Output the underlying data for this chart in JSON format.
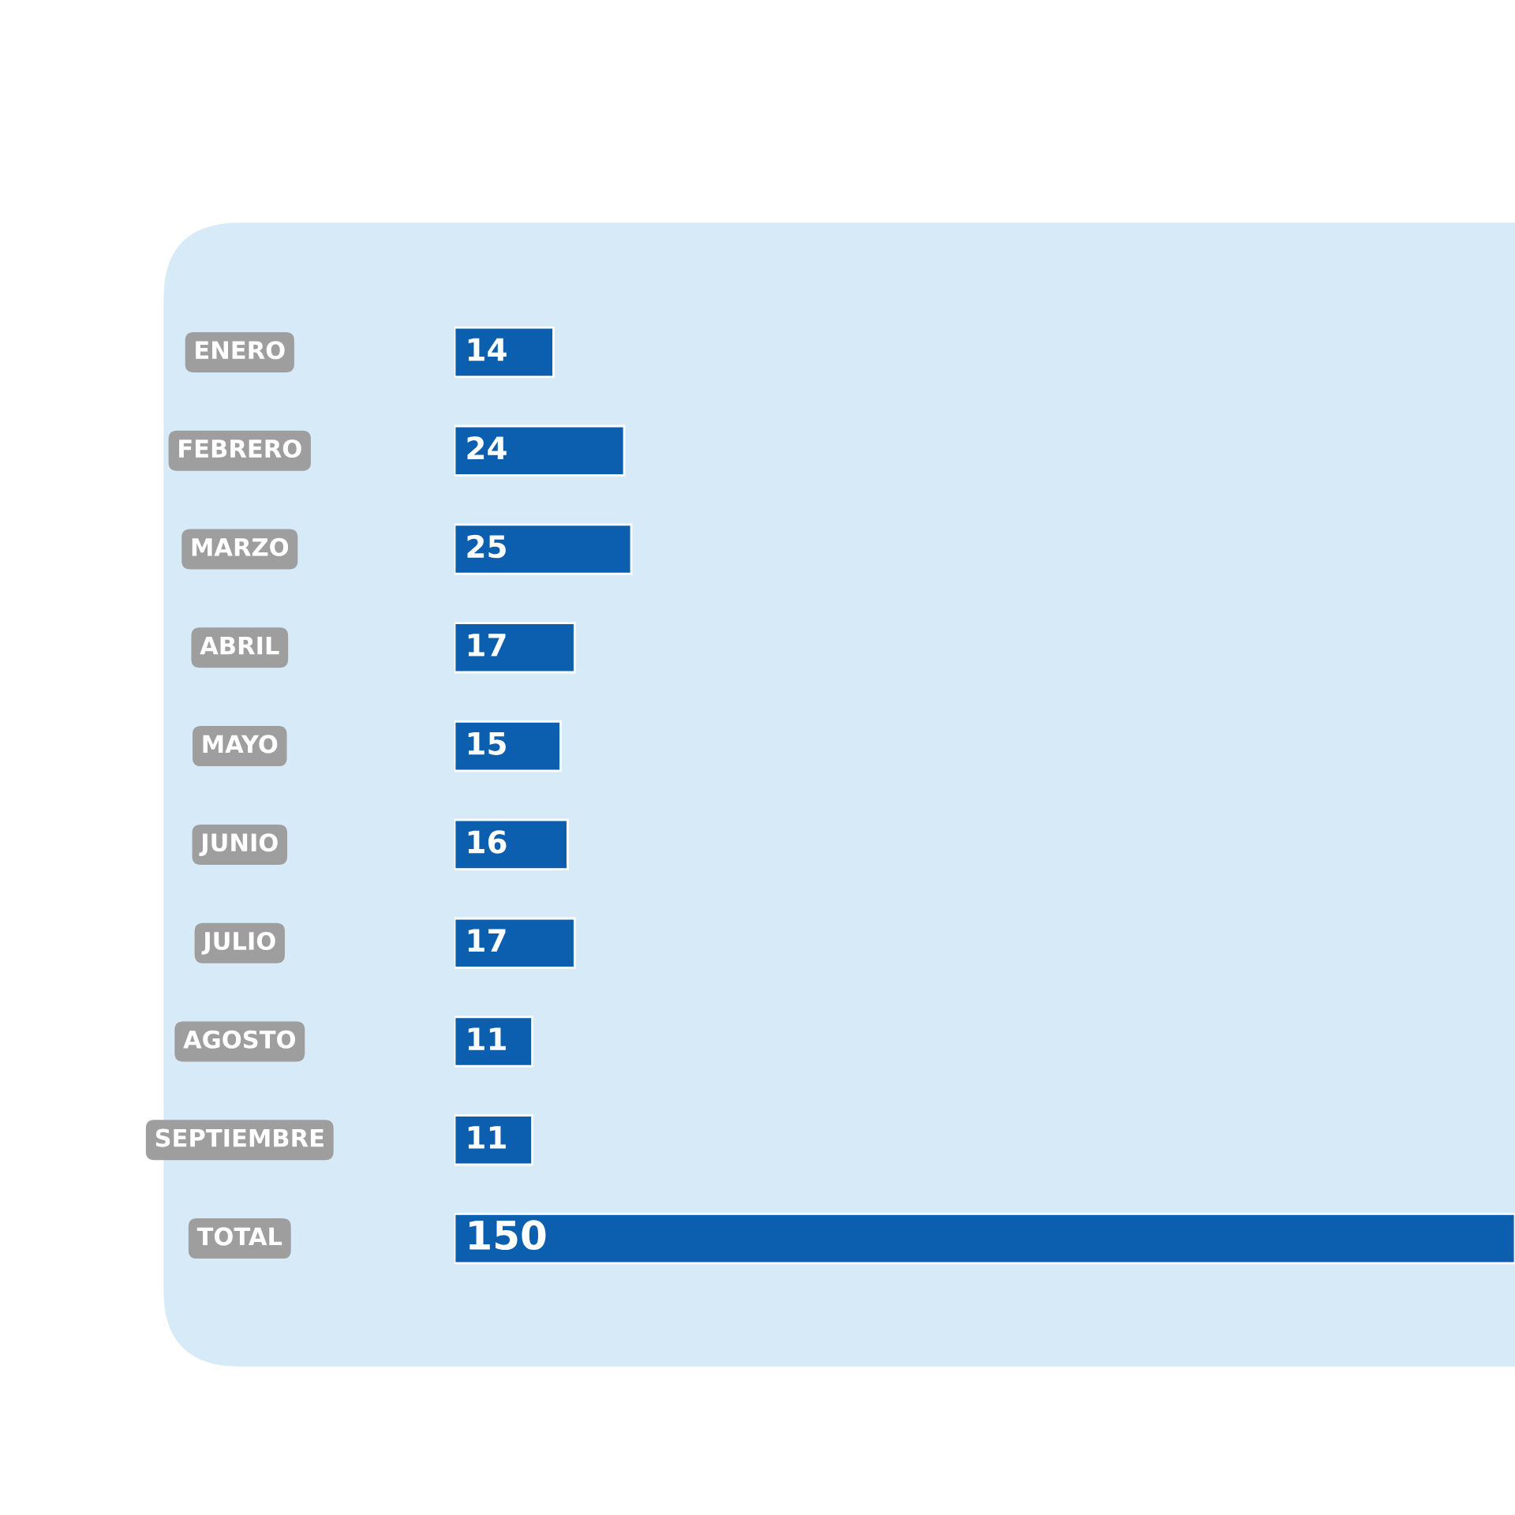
{
  "chart_data": {
    "type": "bar",
    "orientation": "horizontal",
    "categories": [
      "ENERO",
      "FEBRERO",
      "MARZO",
      "ABRIL",
      "MAYO",
      "JUNIO",
      "JULIO",
      "AGOSTO",
      "SEPTIEMBRE",
      "TOTAL"
    ],
    "values": [
      14,
      24,
      25,
      17,
      15,
      16,
      17,
      11,
      11,
      150
    ],
    "color": "#0b5fae",
    "data_labels": true
  }
}
